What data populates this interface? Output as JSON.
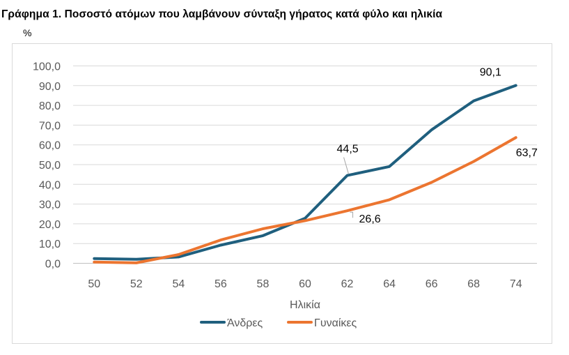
{
  "header": {
    "title": "Γράφημα 1. Ποσοστό  ατόμων που λαμβάνουν σύνταξη γήρατος κατά φύλο και ηλικία",
    "unit": "%"
  },
  "chart_data": {
    "type": "line",
    "title": "Γράφημα 1. Ποσοστό  ατόμων που λαμβάνουν σύνταξη γήρατος κατά φύλο και ηλικία",
    "xlabel": "Ηλικία",
    "ylabel": "%",
    "ylim": [
      0,
      100
    ],
    "y_ticks": [
      "0,0",
      "10,0",
      "20,0",
      "30,0",
      "40,0",
      "50,0",
      "60,0",
      "70,0",
      "80,0",
      "90,0",
      "100,0"
    ],
    "categories": [
      "50",
      "52",
      "54",
      "56",
      "58",
      "60",
      "62",
      "64",
      "66",
      "68",
      "74"
    ],
    "grid": true,
    "legend_position": "bottom",
    "series": [
      {
        "name": "Άνδρες",
        "color": "#1f5f7e",
        "values": [
          2.4,
          2.0,
          3.2,
          9.2,
          14.0,
          22.8,
          44.5,
          49.0,
          67.6,
          82.3,
          90.1
        ],
        "labels": [
          {
            "index": 6,
            "text": "44,5"
          },
          {
            "index": 10,
            "text": "90,1"
          }
        ]
      },
      {
        "name": "Γυναίκες",
        "color": "#ec7530",
        "values": [
          0.6,
          0.2,
          4.4,
          11.8,
          17.5,
          21.6,
          26.6,
          32.2,
          41.0,
          51.6,
          63.7
        ],
        "labels": [
          {
            "index": 6,
            "text": "26,6"
          },
          {
            "index": 10,
            "text": "63,7"
          }
        ]
      }
    ]
  }
}
